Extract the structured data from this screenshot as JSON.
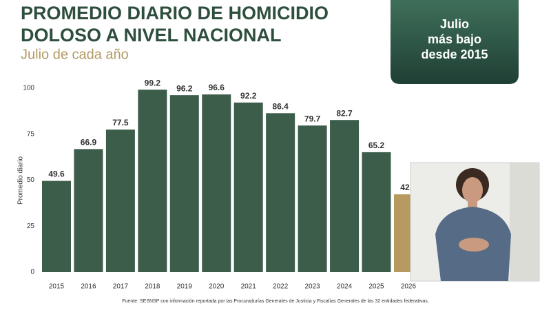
{
  "chart_data": {
    "type": "bar",
    "title": [
      "PROMEDIO DIARIO DE HOMICIDIO",
      "DOLOSO A NIVEL NACIONAL"
    ],
    "subtitle": "Julio de cada año",
    "annotation": [
      "Julio",
      "más bajo",
      "desde 2015"
    ],
    "y_label": "Promedio diario",
    "source": "Fuente: SESNSP con información reportada por las Procuradurías Generales de Justicia y Fiscalías Generales de las 32 entidades federativas.",
    "categories": [
      "2015",
      "2016",
      "2017",
      "2018",
      "2019",
      "2020",
      "2021",
      "2022",
      "2023",
      "2024",
      "2025",
      "2026"
    ],
    "values": [
      49.6,
      66.9,
      77.5,
      99.2,
      96.2,
      96.6,
      92.2,
      86.4,
      79.7,
      82.7,
      65.2,
      42.3
    ],
    "colors": [
      "#3b5d4a",
      "#3b5d4a",
      "#3b5d4a",
      "#3b5d4a",
      "#3b5d4a",
      "#3b5d4a",
      "#3b5d4a",
      "#3b5d4a",
      "#3b5d4a",
      "#3b5d4a",
      "#3b5d4a",
      "#b79a5f"
    ],
    "ylim": [
      0,
      100
    ],
    "yticks": [
      0,
      25,
      50,
      75,
      100
    ],
    "grid": false
  }
}
